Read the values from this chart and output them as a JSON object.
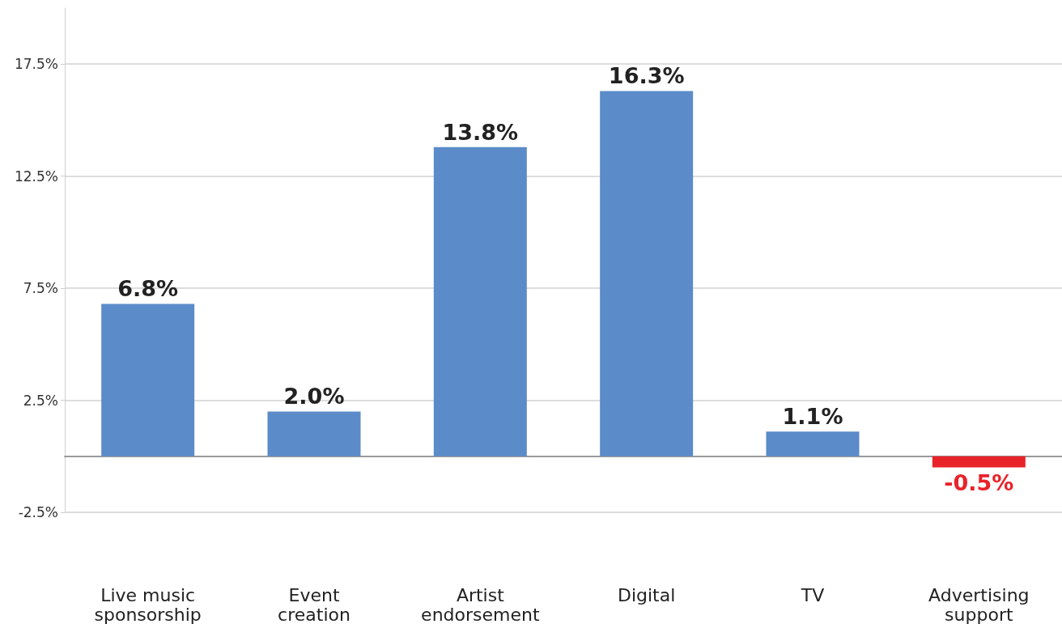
{
  "chart_data": {
    "type": "bar",
    "categories": [
      "Live music sponsorship",
      "Event creation",
      "Artist endorsement",
      "Digital",
      "TV",
      "Advertising support"
    ],
    "values": [
      6.8,
      2.0,
      13.8,
      16.3,
      1.1,
      -0.5
    ],
    "colors": [
      "#5b8bc9",
      "#5b8bc9",
      "#5b8bc9",
      "#5b8bc9",
      "#5b8bc9",
      "#e8232a"
    ],
    "value_labels": [
      "6.8%",
      "2.0%",
      "13.8%",
      "16.3%",
      "1.1%",
      "-0.5%"
    ],
    "ylim": [
      -2.5,
      20
    ],
    "yticks": [
      {
        "value": -2.5,
        "label": "-2.5%"
      },
      {
        "value": 2.5,
        "label": "2.5%"
      },
      {
        "value": 7.5,
        "label": "7.5%"
      },
      {
        "value": 12.5,
        "label": "12.5%"
      },
      {
        "value": 17.5,
        "label": "17.5%"
      }
    ],
    "grid": "y"
  }
}
